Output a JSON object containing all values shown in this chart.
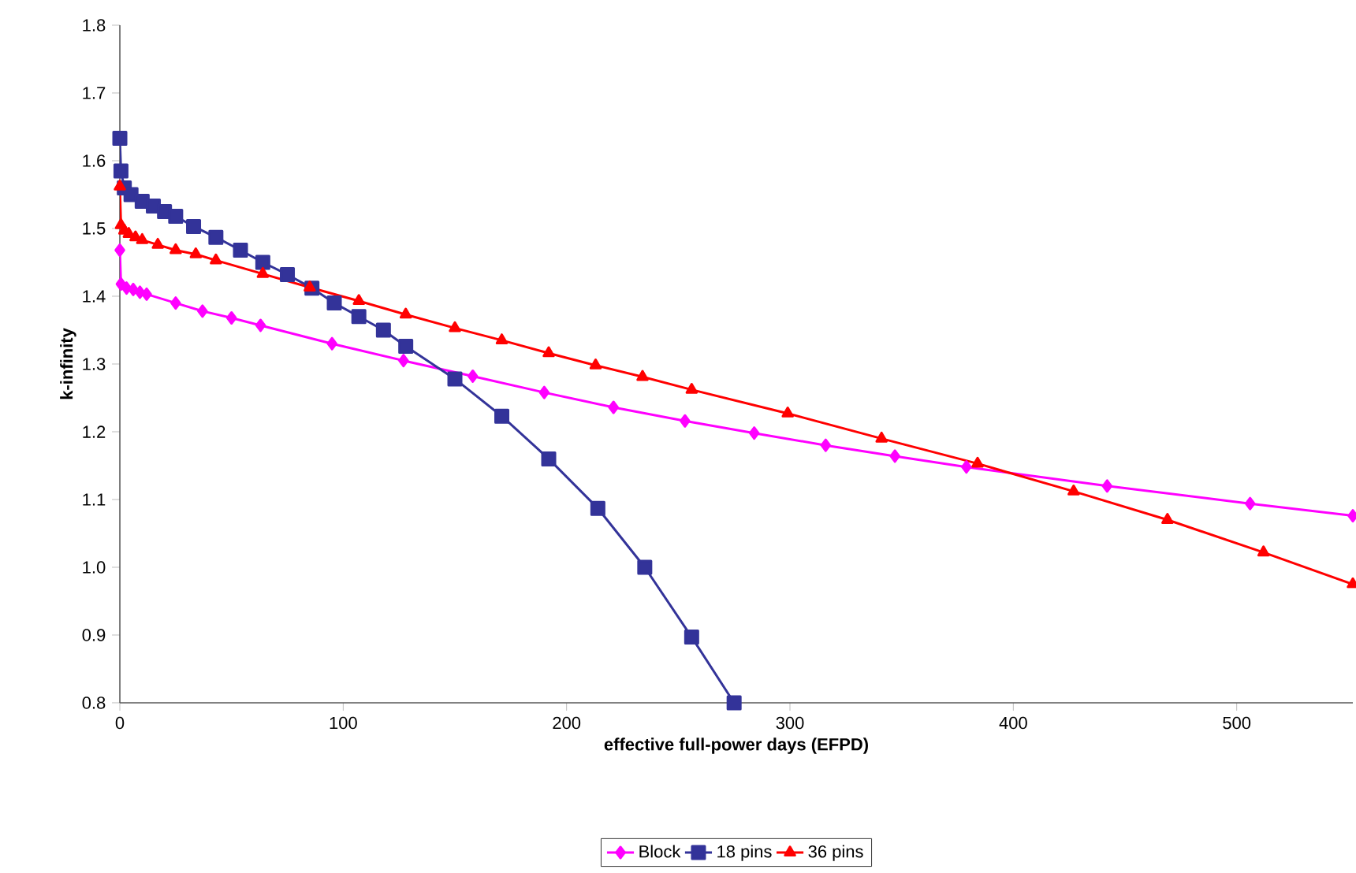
{
  "chart_data": {
    "type": "line",
    "xlabel": "effective full-power days (EFPD)",
    "ylabel": "k-infinity",
    "xlim": [
      0,
      552
    ],
    "ylim": [
      0.8,
      1.8
    ],
    "xticks": [
      0,
      100,
      200,
      300,
      400,
      500
    ],
    "yticks": [
      {
        "value": 0.8,
        "label": "0.8"
      },
      {
        "value": 0.9,
        "label": "0.9"
      },
      {
        "value": 1.0,
        "label": "1.0"
      },
      {
        "value": 1.1,
        "label": "1.1"
      },
      {
        "value": 1.2,
        "label": "1.2"
      },
      {
        "value": 1.3,
        "label": "1.3"
      },
      {
        "value": 1.4,
        "label": "1.4"
      },
      {
        "value": 1.5,
        "label": "1.5"
      },
      {
        "value": 1.6,
        "label": "1.6"
      },
      {
        "value": 1.7,
        "label": "1.7"
      },
      {
        "value": 1.8,
        "label": "1.8"
      }
    ],
    "grid": false,
    "legend": "bottom",
    "line_style": "solid",
    "series": [
      {
        "name": "Block",
        "color": "#ff00ff",
        "marker": "diamond",
        "x": [
          0,
          0.5,
          3,
          6,
          9,
          12,
          25,
          37,
          50,
          63,
          95,
          127,
          158,
          190,
          221,
          253,
          284,
          316,
          347,
          379,
          442,
          506,
          552
        ],
        "values": [
          1.468,
          1.418,
          1.412,
          1.41,
          1.406,
          1.403,
          1.39,
          1.378,
          1.368,
          1.357,
          1.33,
          1.305,
          1.282,
          1.258,
          1.236,
          1.216,
          1.198,
          1.18,
          1.164,
          1.148,
          1.12,
          1.094,
          1.076
        ]
      },
      {
        "name": "18 pins",
        "color": "#333399",
        "marker": "square",
        "x": [
          0,
          0.5,
          2,
          5,
          10,
          15,
          20,
          25,
          33,
          43,
          54,
          64,
          75,
          86,
          96,
          107,
          118,
          128,
          150,
          171,
          192,
          214,
          235,
          256,
          275
        ],
        "values": [
          1.633,
          1.585,
          1.56,
          1.55,
          1.54,
          1.533,
          1.525,
          1.518,
          1.503,
          1.487,
          1.468,
          1.45,
          1.432,
          1.412,
          1.39,
          1.37,
          1.35,
          1.326,
          1.278,
          1.223,
          1.16,
          1.087,
          1.0,
          0.897,
          0.8
        ]
      },
      {
        "name": "36 pins",
        "color": "#ff0000",
        "marker": "triangle",
        "x": [
          0,
          0.5,
          2,
          4,
          7,
          10,
          17,
          25,
          34,
          43,
          64,
          85,
          107,
          128,
          150,
          171,
          192,
          213,
          234,
          256,
          299,
          341,
          384,
          427,
          469,
          512,
          552
        ],
        "values": [
          1.562,
          1.505,
          1.497,
          1.492,
          1.487,
          1.483,
          1.476,
          1.468,
          1.462,
          1.453,
          1.433,
          1.413,
          1.393,
          1.373,
          1.353,
          1.335,
          1.316,
          1.298,
          1.281,
          1.262,
          1.227,
          1.19,
          1.153,
          1.112,
          1.07,
          1.022,
          0.975
        ]
      }
    ]
  }
}
